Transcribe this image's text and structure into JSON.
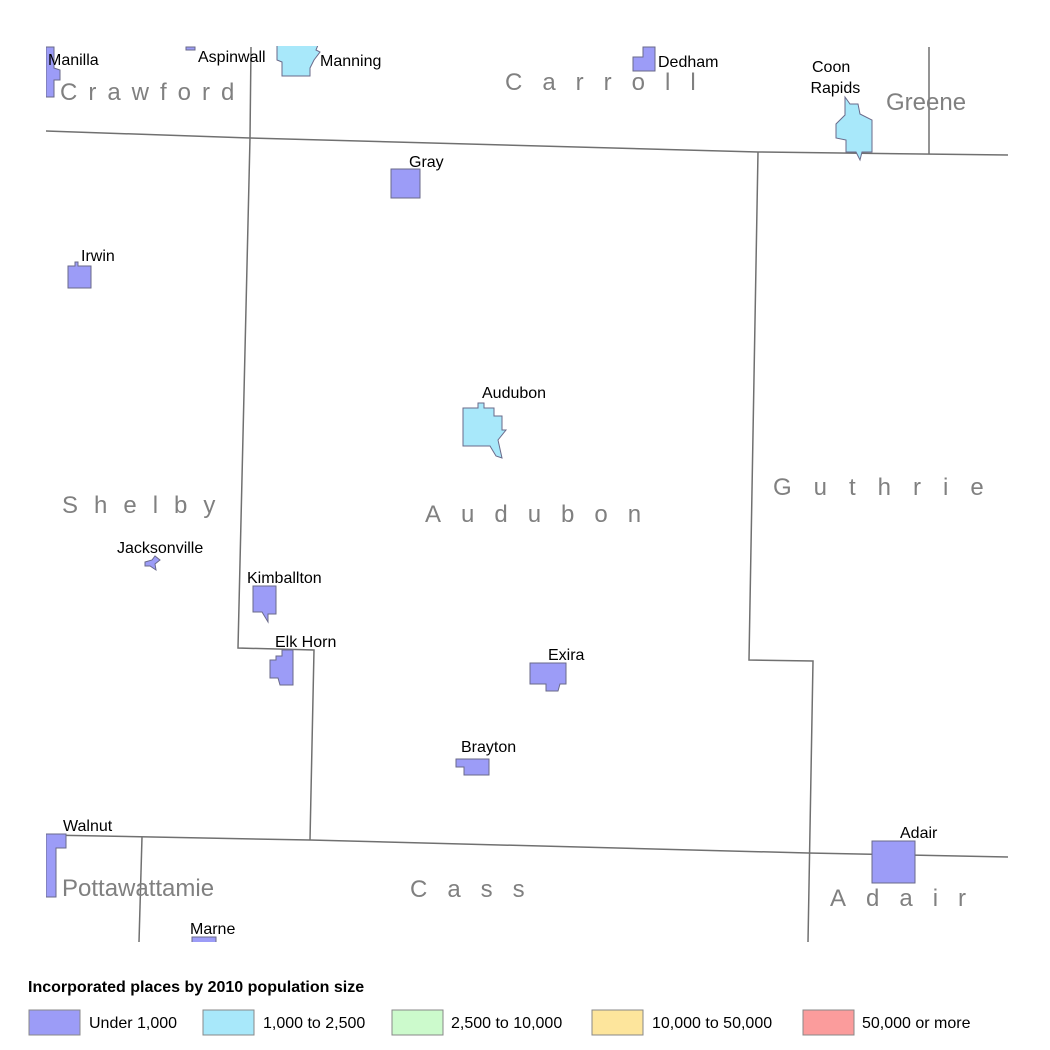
{
  "counties": [
    "Crawford",
    "Carroll",
    "Greene",
    "Shelby",
    "Audubon",
    "Guthrie",
    "Pottawattamie",
    "Cass",
    "Adair"
  ],
  "places": [
    {
      "name": "Manilla",
      "size_class": 0
    },
    {
      "name": "Aspinwall",
      "size_class": 0
    },
    {
      "name": "Manning",
      "size_class": 1
    },
    {
      "name": "Dedham",
      "size_class": 0
    },
    {
      "name": "Coon Rapids",
      "size_class": 1
    },
    {
      "name": "Gray",
      "size_class": 0
    },
    {
      "name": "Irwin",
      "size_class": 0
    },
    {
      "name": "Audubon",
      "size_class": 1
    },
    {
      "name": "Jacksonville",
      "size_class": 0
    },
    {
      "name": "Kimballton",
      "size_class": 0
    },
    {
      "name": "Elk Horn",
      "size_class": 0
    },
    {
      "name": "Exira",
      "size_class": 0
    },
    {
      "name": "Brayton",
      "size_class": 0
    },
    {
      "name": "Walnut",
      "size_class": 0
    },
    {
      "name": "Marne",
      "size_class": 0
    },
    {
      "name": "Adair",
      "size_class": 0
    }
  ],
  "legend": {
    "title": "Incorporated places by 2010 population size",
    "items": [
      {
        "label": "Under 1,000",
        "color": "#9c9cf7"
      },
      {
        "label": "1,000 to 2,500",
        "color": "#a8e8fa"
      },
      {
        "label": "2,500 to 10,000",
        "color": "#ccfacc"
      },
      {
        "label": "10,000 to 50,000",
        "color": "#fde59c"
      },
      {
        "label": "50,000 or more",
        "color": "#fb9c9c"
      }
    ]
  }
}
